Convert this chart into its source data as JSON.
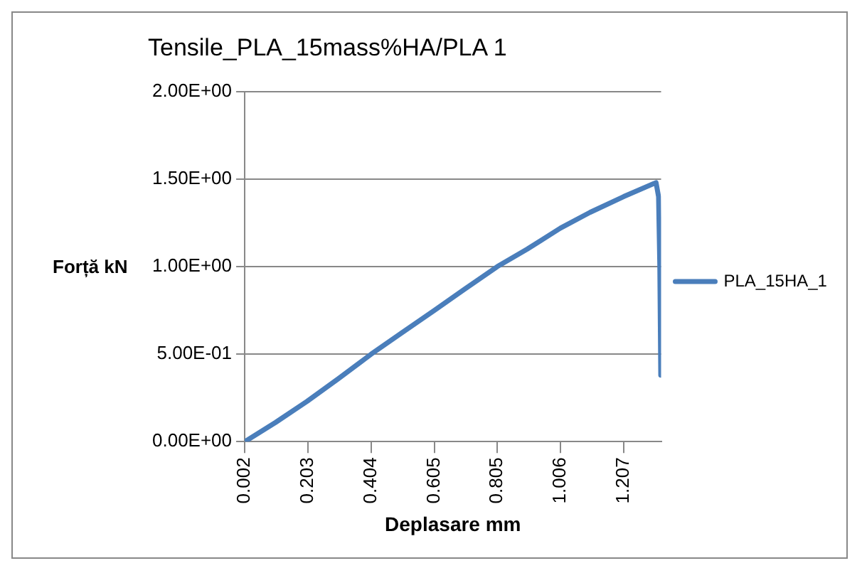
{
  "chart_data": {
    "type": "line",
    "title": "Tensile_PLA_15mass%HA/PLA 1",
    "xlabel": "Deplasare mm",
    "ylabel": "Forță kN",
    "series": [
      {
        "name": "PLA_15HA_1",
        "color": "#4a7ebb",
        "x": [
          0.002,
          0.1,
          0.2,
          0.3,
          0.404,
          0.5,
          0.605,
          0.7,
          0.805,
          0.9,
          1.006,
          1.1,
          1.207,
          1.31,
          1.318,
          1.322,
          1.325
        ],
        "values": [
          0,
          0.11,
          0.23,
          0.36,
          0.5,
          0.62,
          0.75,
          0.87,
          1.0,
          1.1,
          1.22,
          1.31,
          1.4,
          1.48,
          1.4,
          1.0,
          0.38
        ]
      }
    ],
    "xlim": [
      0.002,
      1.326
    ],
    "xticks": [
      {
        "value": 0.002,
        "label": "0.002"
      },
      {
        "value": 0.203,
        "label": "0.203"
      },
      {
        "value": 0.404,
        "label": "0.404"
      },
      {
        "value": 0.605,
        "label": "0.605"
      },
      {
        "value": 0.805,
        "label": "0.805"
      },
      {
        "value": 1.006,
        "label": "1.006"
      },
      {
        "value": 1.207,
        "label": "1.207"
      }
    ],
    "ylim": [
      0,
      2
    ],
    "yticks": [
      {
        "value": 0,
        "label": "0.00E+00"
      },
      {
        "value": 0.5,
        "label": "5.00E-01"
      },
      {
        "value": 1,
        "label": "1.00E+00"
      },
      {
        "value": 1.5,
        "label": "1.50E+00"
      },
      {
        "value": 2,
        "label": "2.00E+00"
      }
    ],
    "grid": "y",
    "legend": "right",
    "marker": "none",
    "line_style": "solid"
  }
}
